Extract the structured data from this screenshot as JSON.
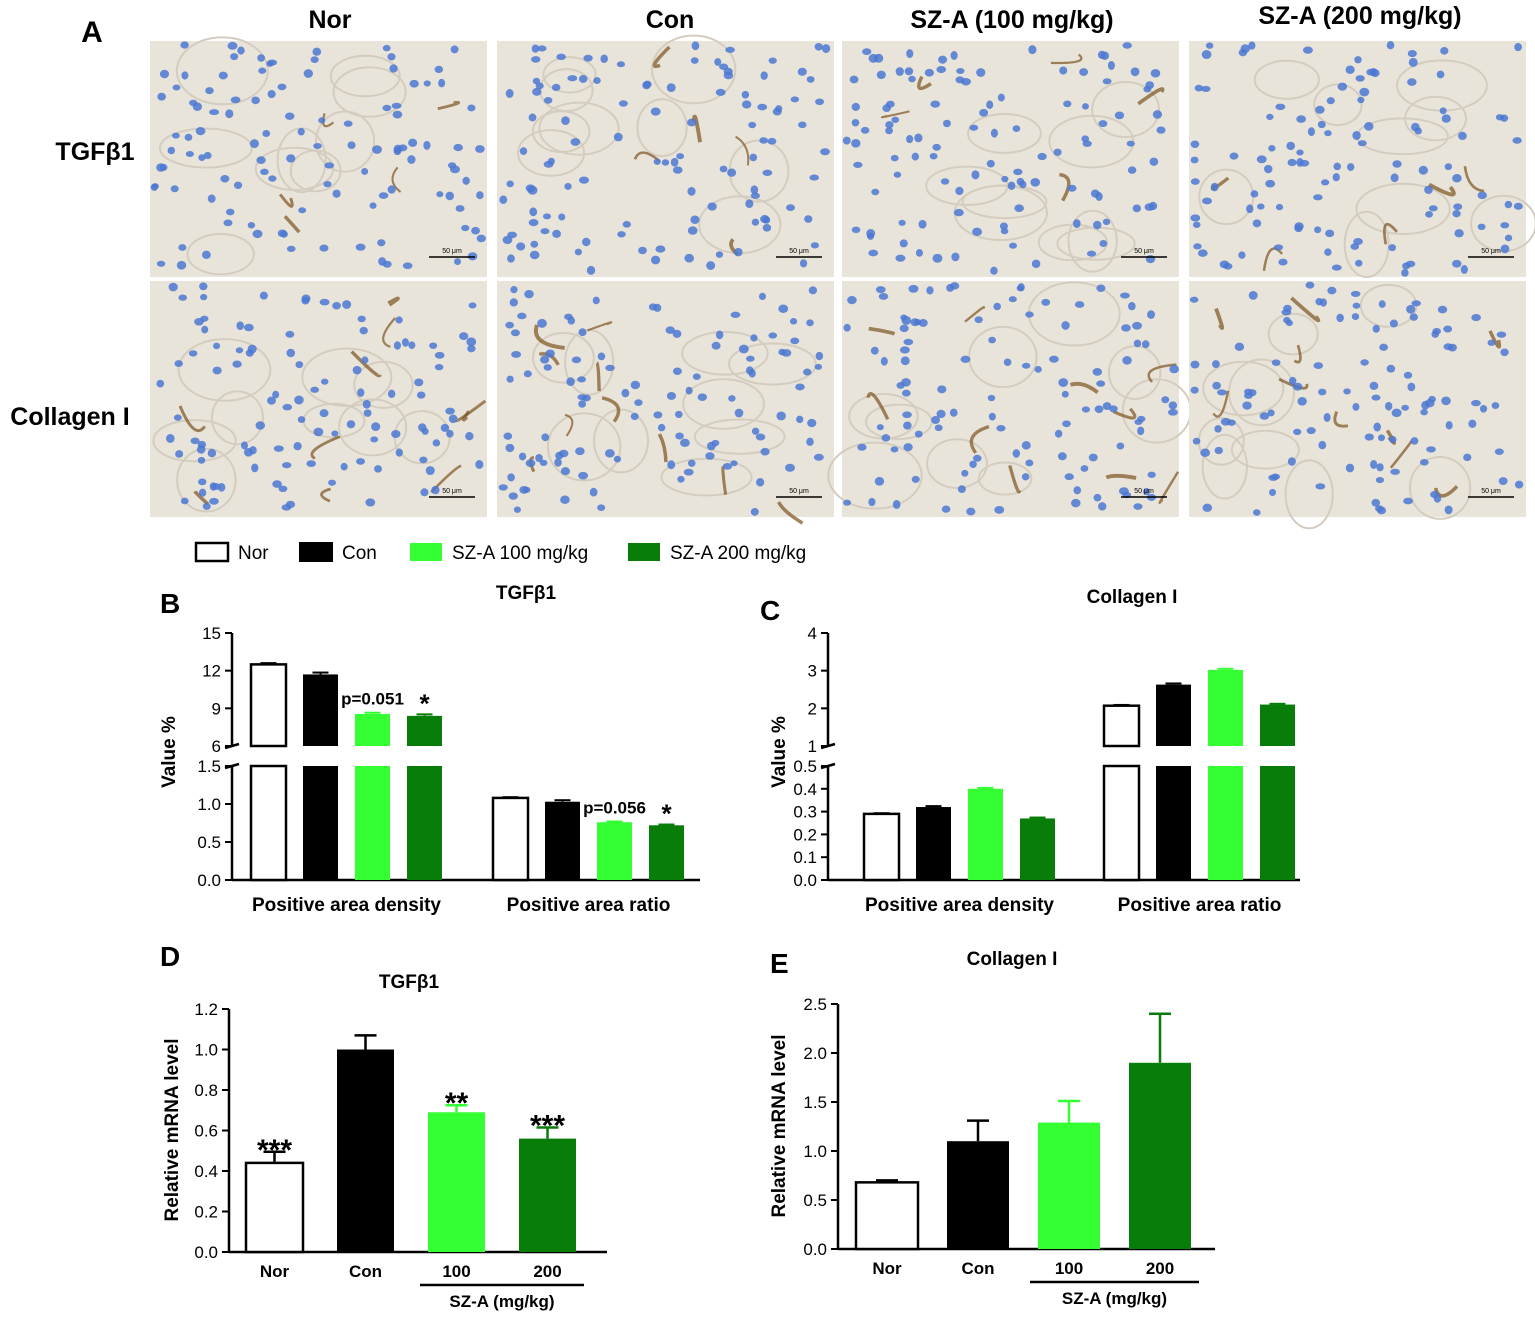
{
  "panel_a": {
    "letter": "A",
    "columns": [
      "Nor",
      "Con",
      "SZ-A (100 mg/kg)",
      "SZ-A (200 mg/kg)"
    ],
    "rows": [
      "TGFβ1",
      "Collagen I"
    ],
    "scale_bar_label": "50 μm"
  },
  "legend": {
    "items": [
      {
        "label": "Nor",
        "color": "#ffffff"
      },
      {
        "label": "Con",
        "color": "#000000"
      },
      {
        "label": "SZ-A 100 mg/kg",
        "color": "#33ff33"
      },
      {
        "label": "SZ-A 200 mg/kg",
        "color": "#087d0a"
      }
    ]
  },
  "colors": {
    "Nor": "#ffffff",
    "Con": "#000000",
    "SZ-A 100 mg/kg": "#33ff33",
    "SZ-A 200 mg/kg": "#087d0a",
    "tissue_bg": "#e9e4da",
    "nucleus": "#4b78d2",
    "stain": "#7a5220"
  },
  "chart_data": [
    {
      "panel": "B",
      "type": "bar",
      "title": "TGFβ1",
      "ylabel": "Value %",
      "broken_axis": true,
      "lower_ylim": [
        0,
        1.5
      ],
      "lower_ticks": [
        0.0,
        0.5,
        1.0,
        1.5
      ],
      "upper_ylim": [
        6,
        15
      ],
      "upper_ticks": [
        6,
        9,
        12,
        15
      ],
      "groups": [
        "Positive area density",
        "Positive area ratio"
      ],
      "series": [
        {
          "name": "Nor",
          "values": [
            12.5,
            1.08
          ],
          "errors": [
            0.1,
            0.01
          ]
        },
        {
          "name": "Con",
          "values": [
            11.7,
            1.03
          ],
          "errors": [
            0.15,
            0.02
          ]
        },
        {
          "name": "SZ-A 100 mg/kg",
          "values": [
            8.55,
            0.76
          ],
          "errors": [
            0.1,
            0.01
          ]
        },
        {
          "name": "SZ-A 200 mg/kg",
          "values": [
            8.4,
            0.72
          ],
          "errors": [
            0.12,
            0.01
          ]
        }
      ],
      "annotations": [
        {
          "group": 0,
          "series": 2,
          "text": "p=0.051"
        },
        {
          "group": 0,
          "series": 3,
          "text": "*"
        },
        {
          "group": 1,
          "series": 2,
          "text": "p=0.056"
        },
        {
          "group": 1,
          "series": 3,
          "text": "*"
        }
      ]
    },
    {
      "panel": "C",
      "type": "bar",
      "title": "Collagen I",
      "ylabel": "Value %",
      "broken_axis": true,
      "lower_ylim": [
        0,
        0.5
      ],
      "lower_ticks": [
        0.0,
        0.1,
        0.2,
        0.3,
        0.4,
        0.5
      ],
      "upper_ylim": [
        1,
        4
      ],
      "upper_ticks": [
        1,
        2,
        3,
        4
      ],
      "groups": [
        "Positive area density",
        "Positive area ratio"
      ],
      "series": [
        {
          "name": "Nor",
          "values": [
            0.29,
            2.07
          ],
          "errors": [
            0.003,
            0.02
          ]
        },
        {
          "name": "Con",
          "values": [
            0.32,
            2.63
          ],
          "errors": [
            0.004,
            0.03
          ]
        },
        {
          "name": "SZ-A 100 mg/kg",
          "values": [
            0.4,
            3.02
          ],
          "errors": [
            0.004,
            0.03
          ]
        },
        {
          "name": "SZ-A 200 mg/kg",
          "values": [
            0.27,
            2.1
          ],
          "errors": [
            0.004,
            0.02
          ]
        }
      ],
      "annotations": []
    },
    {
      "panel": "D",
      "type": "bar",
      "title": "TGFβ1",
      "ylabel": "Relative mRNA level",
      "ylim": [
        0,
        1.2
      ],
      "yticks": [
        0.0,
        0.2,
        0.4,
        0.6,
        0.8,
        1.0,
        1.2
      ],
      "categories": [
        "Nor",
        "Con",
        "100",
        "200"
      ],
      "bracket_label": "SZ-A (mg/kg)",
      "values": [
        0.44,
        1.0,
        0.69,
        0.56
      ],
      "errors": [
        0.055,
        0.07,
        0.035,
        0.055
      ],
      "fills": [
        "#ffffff",
        "#000000",
        "#33ff33",
        "#087d0a"
      ],
      "significance": [
        "***",
        "",
        "**",
        "***"
      ]
    },
    {
      "panel": "E",
      "type": "bar",
      "title": "Collagen I",
      "ylabel": "Relative mRNA level",
      "ylim": [
        0,
        2.5
      ],
      "yticks": [
        0.0,
        0.5,
        1.0,
        1.5,
        2.0,
        2.5
      ],
      "categories": [
        "Nor",
        "Con",
        "100",
        "200"
      ],
      "bracket_label": "SZ-A (mg/kg)",
      "values": [
        0.68,
        1.1,
        1.29,
        1.9
      ],
      "errors": [
        0.02,
        0.21,
        0.22,
        0.5
      ],
      "fills": [
        "#ffffff",
        "#000000",
        "#33ff33",
        "#087d0a"
      ],
      "significance": [
        "",
        "",
        "",
        ""
      ]
    }
  ]
}
